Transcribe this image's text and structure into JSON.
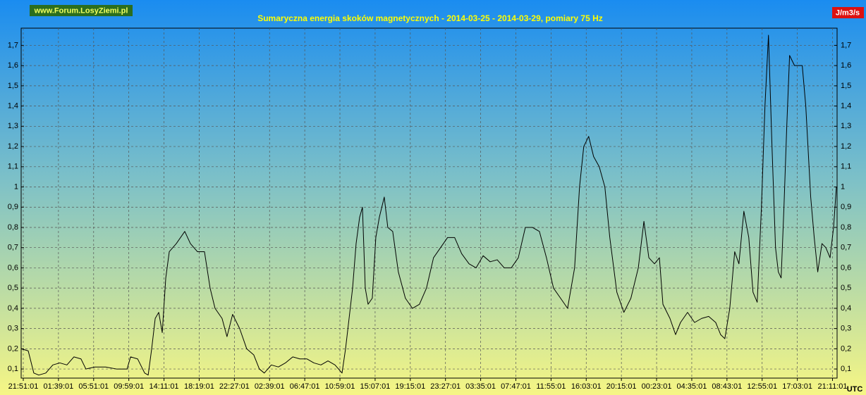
{
  "chart_data": {
    "type": "line",
    "title": "Sumaryczna energia skoków magnetycznych - 2014-03-25 - 2014-03-29, pomiary 75 Hz",
    "watermark": "www.Forum.LosyZiemi.pl",
    "y_unit": "J/m3/s",
    "x_unit": "UTC",
    "grid": true,
    "xlim": [
      -0.06,
      23.13
    ],
    "ylim": [
      0.055,
      1.785
    ],
    "xticks": [
      {
        "value": 0,
        "label": "21:51:01"
      },
      {
        "value": 1,
        "label": "01:39:01"
      },
      {
        "value": 2,
        "label": "05:51:01"
      },
      {
        "value": 3,
        "label": "09:59:01"
      },
      {
        "value": 4,
        "label": "14:11:01"
      },
      {
        "value": 5,
        "label": "18:19:01"
      },
      {
        "value": 6,
        "label": "22:27:01"
      },
      {
        "value": 7,
        "label": "02:39:01"
      },
      {
        "value": 8,
        "label": "06:47:01"
      },
      {
        "value": 9,
        "label": "10:59:01"
      },
      {
        "value": 10,
        "label": "15:07:01"
      },
      {
        "value": 11,
        "label": "19:15:01"
      },
      {
        "value": 12,
        "label": "23:27:01"
      },
      {
        "value": 13,
        "label": "03:35:01"
      },
      {
        "value": 14,
        "label": "07:47:01"
      },
      {
        "value": 15,
        "label": "11:55:01"
      },
      {
        "value": 16,
        "label": "16:03:01"
      },
      {
        "value": 17,
        "label": "20:15:01"
      },
      {
        "value": 18,
        "label": "00:23:01"
      },
      {
        "value": 19,
        "label": "04:35:01"
      },
      {
        "value": 20,
        "label": "08:43:01"
      },
      {
        "value": 21,
        "label": "12:55:01"
      },
      {
        "value": 22,
        "label": "17:03:01"
      },
      {
        "value": 23,
        "label": "21:11:01"
      }
    ],
    "yticks": [
      {
        "value": 0.1,
        "label": "0,1"
      },
      {
        "value": 0.2,
        "label": "0,2"
      },
      {
        "value": 0.3,
        "label": "0,3"
      },
      {
        "value": 0.4,
        "label": "0,4"
      },
      {
        "value": 0.5,
        "label": "0,5"
      },
      {
        "value": 0.6,
        "label": "0,6"
      },
      {
        "value": 0.7,
        "label": "0,7"
      },
      {
        "value": 0.8,
        "label": "0,8"
      },
      {
        "value": 0.9,
        "label": "0,9"
      },
      1,
      {
        "value": 1.1,
        "label": "1,1"
      },
      {
        "value": 1.2,
        "label": "1,2"
      },
      {
        "value": 1.3,
        "label": "1,3"
      },
      {
        "value": 1.4,
        "label": "1,4"
      },
      {
        "value": 1.5,
        "label": "1,5"
      },
      {
        "value": 1.6,
        "label": "1,6"
      },
      {
        "value": 1.7,
        "label": "1,7"
      }
    ],
    "x": [
      -0.06,
      0.14,
      0.3,
      0.44,
      0.64,
      0.84,
      1.04,
      1.24,
      1.44,
      1.64,
      1.78,
      2.04,
      2.34,
      2.65,
      2.95,
      3.05,
      3.25,
      3.45,
      3.55,
      3.65,
      3.75,
      3.85,
      3.95,
      4.05,
      4.15,
      4.35,
      4.59,
      4.75,
      4.95,
      5.15,
      5.31,
      5.45,
      5.65,
      5.79,
      5.95,
      6.15,
      6.35,
      6.55,
      6.71,
      6.85,
      7.05,
      7.25,
      7.45,
      7.66,
      7.86,
      8.06,
      8.26,
      8.46,
      8.66,
      8.86,
      9.06,
      9.16,
      9.26,
      9.36,
      9.46,
      9.56,
      9.64,
      9.72,
      9.8,
      9.92,
      10.02,
      10.12,
      10.26,
      10.36,
      10.5,
      10.66,
      10.86,
      11.06,
      11.26,
      11.46,
      11.66,
      11.86,
      12.06,
      12.26,
      12.46,
      12.67,
      12.87,
      13.07,
      13.27,
      13.47,
      13.67,
      13.87,
      14.07,
      14.27,
      14.47,
      14.67,
      14.87,
      15.07,
      15.27,
      15.47,
      15.67,
      15.81,
      15.93,
      16.07,
      16.21,
      16.37,
      16.53,
      16.67,
      16.87,
      17.07,
      17.27,
      17.48,
      17.64,
      17.78,
      17.94,
      18.08,
      18.18,
      18.38,
      18.54,
      18.68,
      18.88,
      19.08,
      19.28,
      19.48,
      19.68,
      19.82,
      19.94,
      20.08,
      20.22,
      20.34,
      20.48,
      20.62,
      20.74,
      20.86,
      20.98,
      21.08,
      21.18,
      21.28,
      21.38,
      21.46,
      21.54,
      21.62,
      21.7,
      21.78,
      21.92,
      22.04,
      22.14,
      22.24,
      22.38,
      22.48,
      22.58,
      22.7,
      22.81,
      22.93,
      23.03,
      23.11
    ],
    "series": [
      {
        "color": "#000000",
        "values": [
          0.2,
          0.19,
          0.08,
          0.07,
          0.08,
          0.12,
          0.13,
          0.12,
          0.16,
          0.15,
          0.1,
          0.11,
          0.11,
          0.1,
          0.1,
          0.16,
          0.15,
          0.08,
          0.07,
          0.2,
          0.35,
          0.38,
          0.28,
          0.55,
          0.68,
          0.72,
          0.78,
          0.72,
          0.68,
          0.68,
          0.5,
          0.4,
          0.35,
          0.26,
          0.37,
          0.3,
          0.2,
          0.17,
          0.1,
          0.08,
          0.12,
          0.11,
          0.13,
          0.16,
          0.15,
          0.15,
          0.13,
          0.12,
          0.14,
          0.12,
          0.08,
          0.2,
          0.35,
          0.5,
          0.72,
          0.85,
          0.9,
          0.5,
          0.42,
          0.45,
          0.75,
          0.85,
          0.95,
          0.8,
          0.78,
          0.58,
          0.45,
          0.4,
          0.42,
          0.5,
          0.65,
          0.7,
          0.75,
          0.75,
          0.67,
          0.62,
          0.6,
          0.66,
          0.63,
          0.64,
          0.6,
          0.6,
          0.65,
          0.8,
          0.8,
          0.78,
          0.65,
          0.5,
          0.45,
          0.4,
          0.6,
          1.0,
          1.2,
          1.25,
          1.15,
          1.1,
          1.0,
          0.75,
          0.48,
          0.38,
          0.45,
          0.6,
          0.83,
          0.65,
          0.62,
          0.65,
          0.42,
          0.35,
          0.27,
          0.33,
          0.38,
          0.33,
          0.35,
          0.36,
          0.33,
          0.27,
          0.25,
          0.4,
          0.68,
          0.62,
          0.88,
          0.75,
          0.48,
          0.43,
          0.9,
          1.4,
          1.75,
          1.2,
          0.7,
          0.58,
          0.55,
          0.9,
          1.3,
          1.65,
          1.6,
          1.6,
          1.6,
          1.4,
          0.95,
          0.75,
          0.58,
          0.72,
          0.7,
          0.65,
          0.8,
          1.0
        ]
      }
    ]
  }
}
